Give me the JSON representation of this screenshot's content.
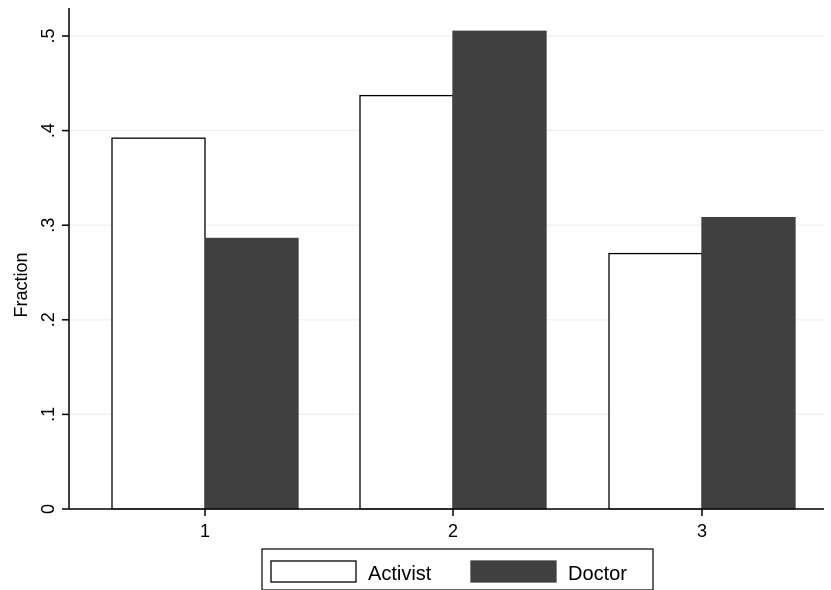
{
  "chart_data": {
    "type": "bar",
    "categories": [
      "1",
      "2",
      "3"
    ],
    "series": [
      {
        "name": "Activist",
        "values": [
          0.392,
          0.437,
          0.27
        ],
        "fill": "#ffffff",
        "stroke": "#000000"
      },
      {
        "name": "Doctor",
        "values": [
          0.286,
          0.505,
          0.308
        ],
        "fill": "#404040",
        "stroke": "#404040"
      }
    ],
    "ylabel": "Fraction",
    "xlabel": "",
    "title": "",
    "ylim": [
      0,
      0.5
    ],
    "yticks": [
      0,
      0.1,
      0.2,
      0.3,
      0.4,
      0.5
    ],
    "ytick_labels": [
      "0",
      ".1",
      ".2",
      ".3",
      ".4",
      ".5"
    ],
    "grid": true,
    "grid_color": "#eaf0f2",
    "legend_position": "bottom"
  }
}
